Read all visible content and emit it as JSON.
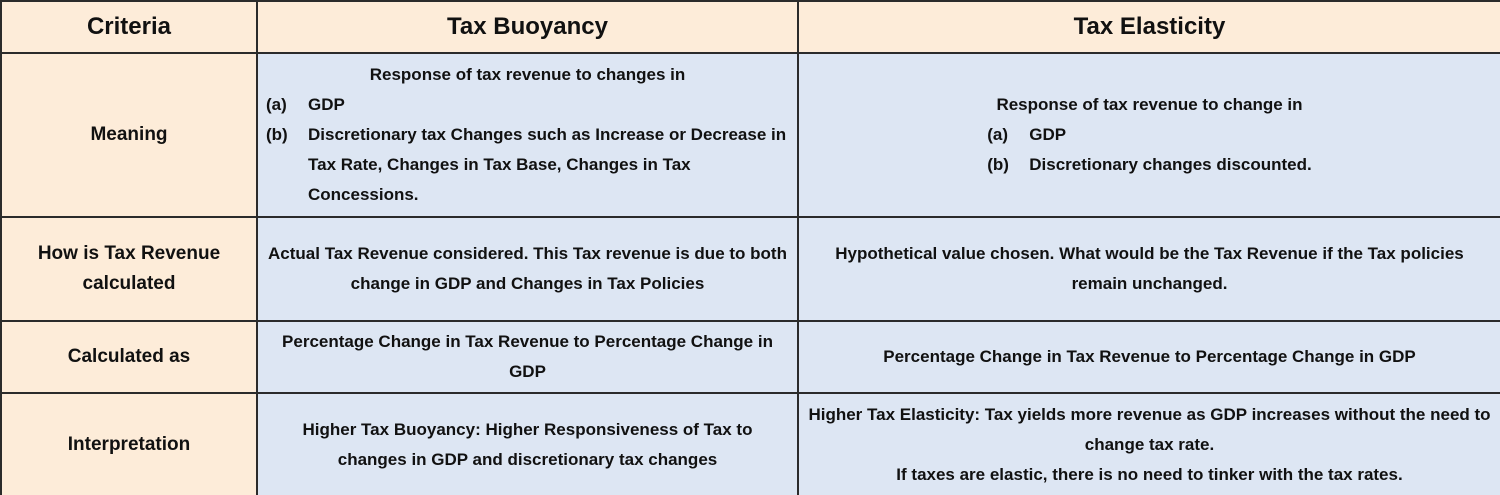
{
  "table": {
    "header": [
      "Criteria",
      "Tax Buoyancy",
      "Tax Elasticity"
    ],
    "rows": [
      {
        "criteria": "Meaning",
        "tax_buoyancy": {
          "intro": "Response of tax revenue to changes in",
          "items": [
            {
              "marker": "(a)",
              "text": "GDP"
            },
            {
              "marker": "(b)",
              "text": "Discretionary tax Changes such as Increase or Decrease in Tax Rate, Changes in Tax Base, Changes in Tax Concessions."
            }
          ]
        },
        "tax_elasticity": {
          "intro": "Response of tax revenue to change in",
          "items": [
            {
              "marker": "(a)",
              "text": "GDP"
            },
            {
              "marker": "(b)",
              "text": "Discretionary changes discounted."
            }
          ]
        }
      },
      {
        "criteria": "How is Tax Revenue calculated",
        "tax_buoyancy": [
          "Actual Tax Revenue considered. This Tax revenue is due to both change in GDP and Changes in Tax Policies"
        ],
        "tax_elasticity": [
          "Hypothetical value chosen. What would be the Tax Revenue if the Tax policies remain unchanged."
        ]
      },
      {
        "criteria": "Calculated as",
        "tax_buoyancy": [
          "Percentage Change in Tax Revenue to Percentage Change in GDP"
        ],
        "tax_elasticity": [
          "Percentage Change in Tax Revenue to Percentage Change in GDP"
        ]
      },
      {
        "criteria": "Interpretation",
        "tax_buoyancy": [
          "Higher Tax Buoyancy: Higher Responsiveness of Tax to changes in GDP and discretionary tax changes"
        ],
        "tax_elasticity": [
          "Higher Tax Elasticity: Tax yields more revenue as GDP increases without the need to change tax rate.",
          "If taxes are elastic, there is no need to tinker with the tax rates."
        ]
      }
    ]
  }
}
